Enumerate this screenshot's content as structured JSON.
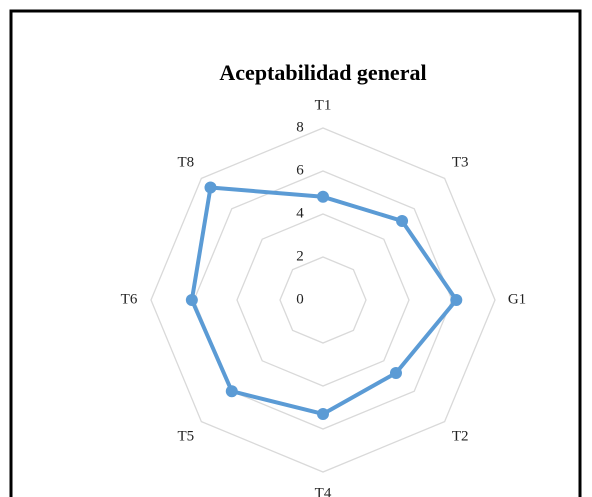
{
  "chart_data": {
    "type": "radar",
    "title": "Aceptabilidad general",
    "categories": [
      "T1",
      "T3",
      "G1",
      "T2",
      "T4",
      "T5",
      "T6",
      "T8"
    ],
    "series": [
      {
        "name": "Aceptabilidad general",
        "color": "#5b9bd5",
        "values": [
          4.8,
          5.2,
          6.2,
          4.8,
          5.3,
          6.0,
          6.1,
          7.4
        ]
      }
    ],
    "ylim": [
      0,
      8
    ],
    "yticks": [
      0,
      2,
      4,
      6,
      8
    ],
    "grid": true
  }
}
